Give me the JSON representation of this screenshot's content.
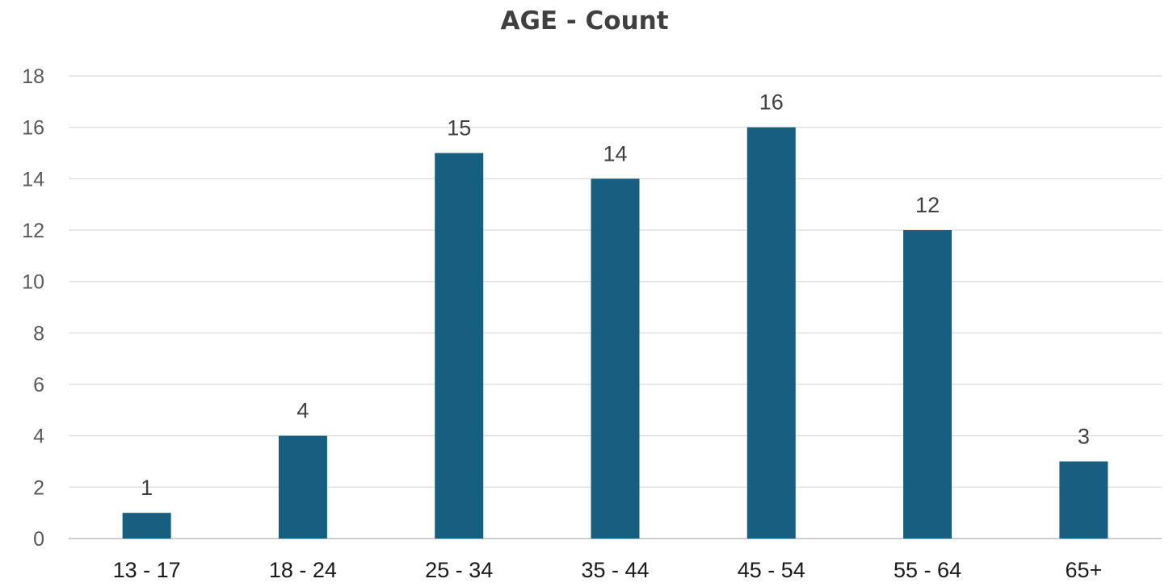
{
  "chart_data": {
    "type": "bar",
    "title": "AGE - Count",
    "xlabel": "",
    "ylabel": "",
    "categories": [
      "13 - 17",
      "18 - 24",
      "25 - 34",
      "35 - 44",
      "45 - 54",
      "55 - 64",
      "65+"
    ],
    "values": [
      1,
      4,
      15,
      14,
      16,
      12,
      3
    ],
    "ylim": [
      0,
      18
    ],
    "yticks": [
      "0",
      "2",
      "4",
      "6",
      "8",
      "10",
      "12",
      "14",
      "16",
      "18"
    ],
    "data_labels": [
      "1",
      "4",
      "15",
      "14",
      "16",
      "12",
      "3"
    ],
    "grid": true,
    "legend": "none",
    "colors": {
      "bar": "#175E80",
      "grid": "#d9d9d9",
      "axis": "#bfbfbf"
    }
  }
}
